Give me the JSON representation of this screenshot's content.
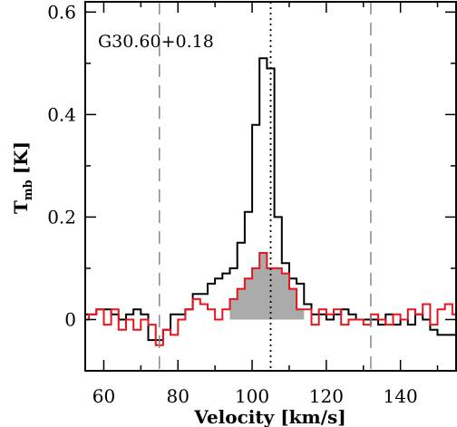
{
  "chart_data": {
    "type": "line",
    "annotation": "G30.60+0.18",
    "xlabel": "Velocity [km/s]",
    "ylabel_main": "T",
    "ylabel_sub": "mb",
    "ylabel_unit": "[K]",
    "xlim": [
      55,
      155
    ],
    "ylim": [
      -0.1,
      0.62
    ],
    "xticks": [
      60,
      80,
      100,
      120,
      140
    ],
    "yticks": [
      0,
      0.2,
      0.4,
      0.6
    ],
    "ytick_labels": [
      "0",
      "0.2",
      "0.4",
      "0.6"
    ],
    "vlines": [
      {
        "x": 75,
        "style": "dashed"
      },
      {
        "x": 105,
        "style": "dotted"
      },
      {
        "x": 132,
        "style": "dashed"
      }
    ],
    "shaded_range": [
      94,
      114
    ],
    "series": [
      {
        "color": "#000000",
        "x": [
          55,
          57,
          59,
          61,
          63,
          65,
          67,
          69,
          71,
          73,
          75,
          77,
          79,
          81,
          83,
          85,
          87,
          89,
          91,
          93,
          95,
          97,
          99,
          101,
          103,
          105,
          107,
          109,
          111,
          113,
          115,
          117,
          119,
          121,
          123,
          125,
          127,
          129,
          131,
          133,
          135,
          137,
          139,
          141,
          143,
          145,
          147,
          149,
          151,
          153,
          155
        ],
        "values": [
          0.01,
          0.01,
          0.02,
          0.02,
          0.01,
          0.0,
          0.01,
          0.02,
          0.01,
          -0.04,
          -0.04,
          -0.02,
          0.01,
          0.01,
          0.02,
          0.05,
          0.05,
          0.07,
          0.08,
          0.09,
          0.1,
          0.15,
          0.21,
          0.38,
          0.51,
          0.49,
          0.2,
          0.11,
          0.08,
          0.07,
          0.03,
          0.01,
          0.01,
          0.0,
          0.01,
          0.02,
          0.01,
          0.0,
          0.0,
          0.0,
          -0.01,
          0.01,
          -0.01,
          0.0,
          -0.01,
          0.01,
          0.0,
          -0.02,
          -0.03,
          -0.03,
          -0.03
        ]
      },
      {
        "color": "#e8141e",
        "x": [
          55,
          57,
          59,
          61,
          63,
          65,
          67,
          69,
          71,
          73,
          75,
          77,
          79,
          81,
          83,
          85,
          87,
          89,
          91,
          93,
          95,
          97,
          99,
          101,
          103,
          105,
          107,
          109,
          111,
          113,
          115,
          117,
          119,
          121,
          123,
          125,
          127,
          129,
          131,
          133,
          135,
          137,
          139,
          141,
          143,
          145,
          147,
          149,
          151,
          153,
          155
        ],
        "values": [
          0.0,
          0.01,
          0.02,
          -0.01,
          0.02,
          -0.02,
          0.0,
          -0.02,
          0.0,
          -0.01,
          -0.05,
          -0.02,
          -0.03,
          0.0,
          0.02,
          0.04,
          0.03,
          0.02,
          0.0,
          0.02,
          0.04,
          0.06,
          0.08,
          0.1,
          0.13,
          0.1,
          0.1,
          0.09,
          0.06,
          0.02,
          0.02,
          -0.01,
          0.02,
          0.01,
          0.02,
          -0.01,
          0.0,
          0.0,
          -0.01,
          0.01,
          0.0,
          -0.01,
          0.01,
          0.0,
          0.02,
          0.01,
          0.03,
          -0.01,
          0.02,
          0.03,
          0.01
        ]
      }
    ]
  }
}
